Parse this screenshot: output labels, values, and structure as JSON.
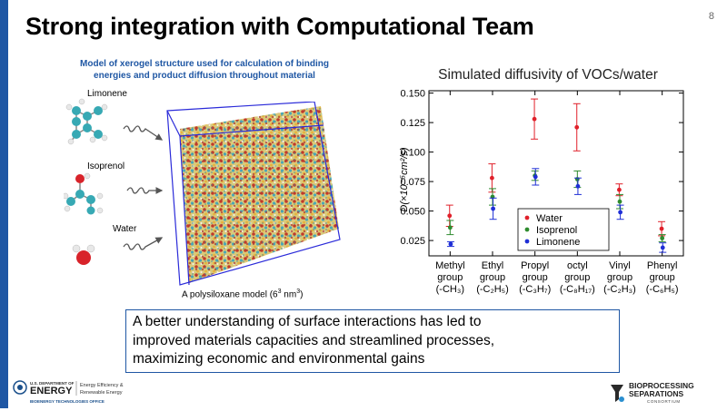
{
  "slide": {
    "title": "Strong integration with Computational Team",
    "page_number": "8"
  },
  "left_panel": {
    "caption_line1": "Model of xerogel structure used for calculation of binding",
    "caption_line2": "energies and product diffusion throughout material",
    "molecules": [
      {
        "label": "Limonene"
      },
      {
        "label": "Isoprenol"
      },
      {
        "label": "Water"
      }
    ],
    "model_caption": "A polysiloxane model (6",
    "model_caption_sup": "3",
    "model_caption_tail": " nm",
    "model_caption_sup2": "3",
    "model_caption_end": ")"
  },
  "summary": {
    "line1": "A better understanding of surface interactions has led to",
    "line2": "improved materials capacities and streamlined processes,",
    "line3": "maximizing economic and environmental gains"
  },
  "footer": {
    "doe_small": "U.S. DEPARTMENT OF",
    "doe_big": "ENERGY",
    "eere_line1": "Energy Efficiency &",
    "eere_line2": "Renewable Energy",
    "office": "BIOENERGY TECHNOLOGIES OFFICE",
    "bsc_line1": "BIOPROCESSING",
    "bsc_line2": "SEPARATIONS",
    "bsc_line3": "CONSORTIUM"
  },
  "colors": {
    "accent_blue": "#1f57a4",
    "water": "#e0202a",
    "isoprenol": "#2e8b2e",
    "limonene": "#1f2fd6"
  },
  "chart_data": {
    "type": "scatter",
    "title": "Simulated diffusivity of VOCs/water",
    "ylabel": "D(×10⁻⁵cm²/s)",
    "ylim": [
      0.012,
      0.152
    ],
    "yticks": [
      "0.025",
      "0.050",
      "0.075",
      "0.100",
      "0.125",
      "0.150"
    ],
    "yticks_values": [
      0.025,
      0.05,
      0.075,
      0.1,
      0.125,
      0.15
    ],
    "categories": [
      {
        "line1": "Methyl",
        "line2": "group",
        "line3": "(-CH₃)"
      },
      {
        "line1": "Ethyl",
        "line2": "group",
        "line3": "(-C₂H₅)"
      },
      {
        "line1": "Propyl",
        "line2": "group",
        "line3": "(-C₃H₇)"
      },
      {
        "line1": "octyl",
        "line2": "group",
        "line3": "(-C₈H₁₇)"
      },
      {
        "line1": "Vinyl",
        "line2": "group",
        "line3": "(-C₂H₃)"
      },
      {
        "line1": "Phenyl",
        "line2": "group",
        "line3": "(-C₆H₅)"
      }
    ],
    "legend_position": "lower-right",
    "series": [
      {
        "name": "Water",
        "color": "#e0202a",
        "values": [
          0.046,
          0.078,
          0.128,
          0.121,
          0.068,
          0.035
        ],
        "errors": [
          0.009,
          0.012,
          0.017,
          0.02,
          0.005,
          0.006
        ]
      },
      {
        "name": "Isoprenol",
        "color": "#2e8b2e",
        "values": [
          0.036,
          0.062,
          0.08,
          0.077,
          0.058,
          0.027
        ],
        "errors": [
          0.006,
          0.007,
          0.004,
          0.007,
          0.006,
          0.003
        ]
      },
      {
        "name": "Limonene",
        "color": "#1f2fd6",
        "values": [
          0.022,
          0.052,
          0.079,
          0.071,
          0.049,
          0.019
        ],
        "errors": [
          0.002,
          0.009,
          0.007,
          0.007,
          0.006,
          0.004
        ]
      }
    ]
  }
}
